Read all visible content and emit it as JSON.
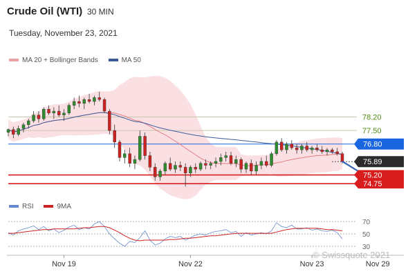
{
  "header": {
    "title": "Crude Oil (WTI)",
    "timeframe": "30 MIN",
    "date": "Tuesday, November 23, 2021"
  },
  "legend": {
    "price": [
      {
        "label": "MA 20 + Bollinger Bands",
        "color": "#e8a0a0"
      },
      {
        "label": "MA 50",
        "color": "#3a5a9a"
      }
    ],
    "rsi": [
      {
        "label": "RSI",
        "color": "#6688cc"
      },
      {
        "label": "9MA",
        "color": "#cc2222"
      }
    ]
  },
  "watermark": "© Swissquote 2021",
  "colors": {
    "up_candle": "#2e8b2e",
    "down_candle": "#cc2222",
    "band": "#fbe0e3",
    "ma20": "#e37f86",
    "ma50": "#3a5a9a",
    "level_blue": "#1a66e0",
    "level_red": "#d71d1d",
    "level_dark": "#2b2b2b",
    "level_green_text": "#4f8a10",
    "level_grey": "#c6c6a8"
  },
  "chart_data": [
    {
      "type": "candlestick",
      "title": "Crude Oil (WTI) 30 MIN",
      "x_ticks": [
        {
          "label": "Nov 19",
          "index": 11
        },
        {
          "label": "Nov 22",
          "index": 36
        },
        {
          "label": "Nov 23",
          "index": 60
        },
        {
          "label": "Nov 29",
          "index": 73
        }
      ],
      "ylim": [
        73.9,
        80.5
      ],
      "levels": [
        {
          "label": "78.20",
          "value": 78.2,
          "style": "resistance-text"
        },
        {
          "label": "77.50",
          "value": 77.5,
          "style": "resistance-text"
        },
        {
          "label": "76.80",
          "value": 76.8,
          "style": "resistance-box"
        },
        {
          "label": "75.89",
          "value": 75.89,
          "style": "current-price"
        },
        {
          "label": "75.20",
          "value": 75.2,
          "style": "support-box"
        },
        {
          "label": "74.75",
          "value": 74.75,
          "style": "support-box"
        }
      ],
      "candles": [
        [
          77.4,
          77.6,
          77.2,
          77.55
        ],
        [
          77.55,
          77.7,
          77.1,
          77.3
        ],
        [
          77.3,
          77.75,
          77.2,
          77.6
        ],
        [
          77.6,
          77.9,
          77.4,
          77.8
        ],
        [
          77.8,
          78.1,
          77.6,
          78.0
        ],
        [
          78.0,
          78.5,
          77.9,
          78.3
        ],
        [
          78.3,
          78.5,
          77.9,
          78.1
        ],
        [
          78.1,
          78.7,
          78.0,
          78.6
        ],
        [
          78.6,
          78.8,
          78.3,
          78.4
        ],
        [
          78.4,
          78.7,
          78.1,
          78.5
        ],
        [
          78.5,
          78.8,
          78.2,
          78.3
        ],
        [
          78.3,
          78.6,
          78.0,
          78.4
        ],
        [
          78.4,
          78.9,
          78.3,
          78.8
        ],
        [
          78.8,
          79.2,
          78.6,
          79.0
        ],
        [
          79.0,
          79.3,
          78.7,
          78.9
        ],
        [
          78.9,
          79.2,
          78.6,
          79.1
        ],
        [
          79.1,
          79.4,
          78.9,
          79.0
        ],
        [
          79.0,
          79.3,
          78.8,
          79.2
        ],
        [
          79.2,
          79.5,
          79.0,
          79.1
        ],
        [
          79.1,
          79.2,
          78.4,
          78.5
        ],
        [
          78.5,
          78.6,
          77.3,
          77.5
        ],
        [
          77.5,
          77.8,
          76.6,
          76.9
        ],
        [
          76.9,
          77.0,
          75.9,
          76.1
        ],
        [
          76.1,
          76.5,
          75.8,
          76.3
        ],
        [
          76.3,
          76.6,
          75.6,
          75.8
        ],
        [
          75.8,
          76.2,
          75.5,
          76.0
        ],
        [
          76.0,
          77.5,
          75.9,
          77.2
        ],
        [
          77.2,
          77.4,
          76.0,
          76.2
        ],
        [
          76.2,
          76.4,
          75.4,
          75.6
        ],
        [
          75.6,
          75.8,
          74.9,
          75.1
        ],
        [
          75.1,
          75.5,
          74.9,
          75.4
        ],
        [
          75.4,
          75.9,
          75.2,
          75.8
        ],
        [
          75.8,
          76.1,
          75.4,
          75.5
        ],
        [
          75.5,
          75.9,
          75.3,
          75.7
        ],
        [
          75.7,
          75.9,
          75.4,
          75.6
        ],
        [
          75.6,
          75.8,
          74.6,
          75.3
        ],
        [
          75.3,
          75.7,
          75.1,
          75.6
        ],
        [
          75.6,
          75.8,
          75.3,
          75.5
        ],
        [
          75.5,
          75.9,
          75.4,
          75.8
        ],
        [
          75.8,
          76.0,
          75.5,
          75.7
        ],
        [
          75.7,
          75.9,
          75.5,
          75.8
        ],
        [
          75.8,
          76.1,
          75.6,
          75.9
        ],
        [
          75.9,
          76.3,
          75.7,
          76.1
        ],
        [
          76.1,
          76.4,
          75.9,
          76.2
        ],
        [
          76.2,
          76.4,
          75.7,
          75.8
        ],
        [
          75.8,
          76.2,
          75.6,
          76.0
        ],
        [
          76.0,
          76.1,
          75.3,
          75.5
        ],
        [
          75.5,
          75.9,
          75.3,
          75.8
        ],
        [
          75.8,
          76.0,
          75.2,
          75.4
        ],
        [
          75.4,
          75.9,
          75.2,
          75.7
        ],
        [
          75.7,
          76.1,
          75.5,
          75.9
        ],
        [
          75.9,
          76.2,
          75.6,
          75.7
        ],
        [
          75.7,
          76.4,
          75.6,
          76.3
        ],
        [
          76.3,
          77.0,
          76.2,
          76.9
        ],
        [
          76.9,
          77.1,
          76.4,
          76.5
        ],
        [
          76.5,
          76.9,
          76.3,
          76.8
        ],
        [
          76.8,
          77.0,
          76.5,
          76.6
        ],
        [
          76.6,
          76.8,
          76.3,
          76.5
        ],
        [
          76.5,
          76.8,
          76.3,
          76.7
        ],
        [
          76.7,
          76.9,
          76.4,
          76.5
        ],
        [
          76.5,
          76.7,
          76.3,
          76.6
        ],
        [
          76.6,
          76.8,
          76.4,
          76.5
        ],
        [
          76.5,
          76.7,
          76.3,
          76.4
        ],
        [
          76.4,
          76.6,
          76.2,
          76.5
        ],
        [
          76.5,
          76.6,
          76.3,
          76.4
        ],
        [
          76.4,
          76.6,
          76.2,
          76.3
        ],
        [
          76.3,
          76.4,
          75.8,
          75.9
        ]
      ],
      "forecast_arrow": {
        "from": [
          66,
          75.9
        ],
        "to": [
          70,
          74.9
        ],
        "color": "#3a64b8"
      }
    },
    {
      "type": "line",
      "title": "RSI",
      "y_ticks": [
        70,
        50,
        30
      ],
      "ylim": [
        20,
        80
      ],
      "series": [
        {
          "name": "RSI",
          "color": "#6688cc",
          "values": [
            52,
            48,
            55,
            58,
            60,
            63,
            57,
            62,
            55,
            58,
            52,
            56,
            61,
            64,
            57,
            60,
            58,
            66,
            70,
            62,
            50,
            42,
            35,
            30,
            38,
            36,
            44,
            55,
            40,
            32,
            35,
            42,
            46,
            44,
            46,
            40,
            44,
            48,
            50,
            48,
            52,
            54,
            55,
            57,
            52,
            54,
            46,
            52,
            48,
            50,
            52,
            50,
            55,
            68,
            62,
            60,
            64,
            58,
            58,
            60,
            56,
            58,
            55,
            54,
            56,
            52,
            42
          ]
        },
        {
          "name": "9MA",
          "color": "#cc2222",
          "values": [
            51,
            51,
            52,
            53,
            54,
            55,
            56,
            57,
            57,
            58,
            58,
            58,
            58,
            58,
            59,
            60,
            60,
            61,
            62,
            62,
            60,
            56,
            52,
            47,
            43,
            40,
            39,
            40,
            40,
            40,
            40,
            40,
            41,
            41,
            42,
            43,
            43,
            44,
            45,
            46,
            47,
            47,
            48,
            49,
            50,
            51,
            51,
            51,
            51,
            51,
            51,
            51,
            51,
            53,
            55,
            57,
            58,
            59,
            59,
            59,
            59,
            59,
            58,
            57,
            57,
            56,
            55
          ]
        }
      ]
    }
  ]
}
